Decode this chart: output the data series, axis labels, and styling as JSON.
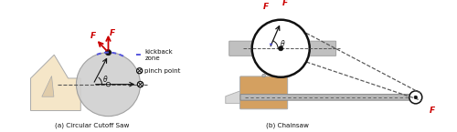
{
  "fig_width": 5.0,
  "fig_height": 1.45,
  "dpi": 100,
  "bg_color": "#ffffff",
  "house_color": "#f5e6c8",
  "blade_color": "#d0d0d0",
  "kickback_color": "#5555dd",
  "arrow_color": "#cc0000",
  "black": "#111111",
  "dashed_color": "#555555",
  "caption_a": "(a) Circular Cutoff Saw",
  "caption_b": "(b) Chainsaw",
  "legend_kickback": "kickback\nzone",
  "legend_pinch": "pinch point",
  "label_F": "F",
  "label_theta": "θ",
  "xlim": [
    0,
    10
  ],
  "ylim": [
    0,
    2.9
  ]
}
